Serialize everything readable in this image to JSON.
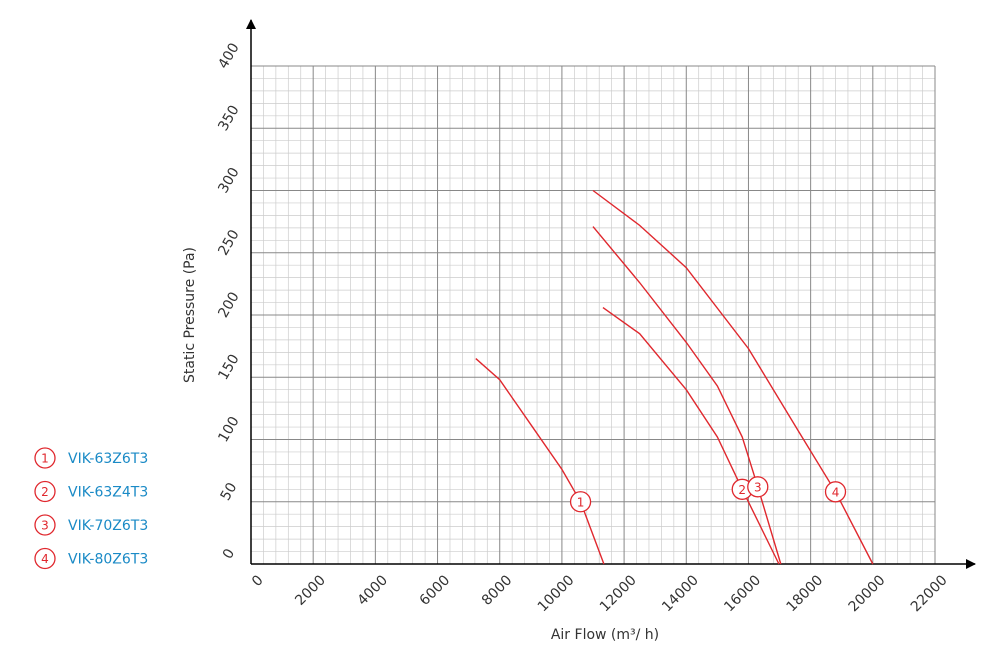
{
  "chart_data": {
    "type": "line",
    "x_label": "Air Flow (m³/ h)",
    "y_label": "Static Pressure (Pa)",
    "xlim": [
      0,
      22000
    ],
    "xticks": [
      0,
      2000,
      4000,
      6000,
      8000,
      10000,
      12000,
      14000,
      16000,
      18000,
      20000,
      22000
    ],
    "ylim": [
      0,
      400
    ],
    "yticks": [
      0,
      50,
      100,
      150,
      200,
      250,
      300,
      350,
      400
    ],
    "grid": true,
    "series": [
      {
        "marker": "1",
        "name": "VIK-63Z6T3",
        "color": "#e0282e",
        "x": [
          7230,
          8000,
          9000,
          10000,
          10600,
          11350
        ],
        "values": [
          165,
          148,
          112,
          76,
          50,
          0
        ]
      },
      {
        "marker": "2",
        "name": "VIK-63Z4T3",
        "color": "#e0282e",
        "x": [
          11320,
          12500,
          14000,
          15000,
          15800,
          16980
        ],
        "values": [
          206,
          185,
          140,
          102,
          60,
          0
        ]
      },
      {
        "marker": "3",
        "name": "VIK-70Z6T3",
        "color": "#e0282e",
        "x": [
          11000,
          12500,
          14000,
          15000,
          15800,
          16300,
          17040
        ],
        "values": [
          271,
          226,
          178,
          143,
          102,
          62,
          0
        ]
      },
      {
        "marker": "4",
        "name": "VIK-80Z6T3",
        "color": "#e0282e",
        "x": [
          11000,
          12500,
          14000,
          16000,
          17600,
          18800,
          20000
        ],
        "values": [
          300,
          272,
          238,
          173,
          107,
          58,
          0
        ]
      }
    ]
  }
}
